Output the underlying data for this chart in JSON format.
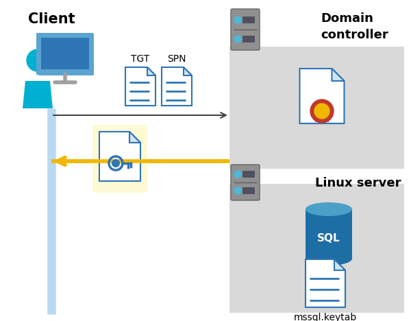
{
  "bg_color": "#ffffff",
  "client_label": "Client",
  "domain_label": "Domain\ncontroller",
  "linux_label": "Linux server",
  "tgt_label": "TGT",
  "spn_label": "SPN",
  "mssql_label": "mssql.keytab",
  "gray_box_color": "#d9d9d9",
  "yellow_box_color": "#fdfad4",
  "blue_line_color": "#b8d9f0",
  "gold_arrow_color": "#f0b800",
  "doc_blue": "#2e75b6",
  "doc_blue_light": "#5ba3d0",
  "person_teal": "#00b0d0",
  "server_gray_dark": "#808080",
  "server_gray_light": "#a0a0a0",
  "sql_dark": "#1a4f80",
  "sql_mid": "#1e6ea6",
  "sql_top": "#4aa0c8"
}
